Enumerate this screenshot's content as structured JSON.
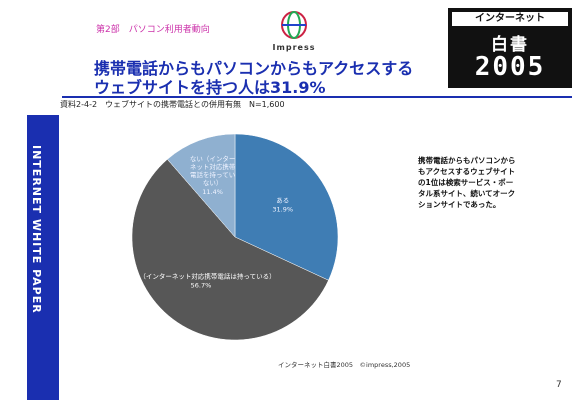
{
  "section_label": "第2部　パソコン利用者動向",
  "logo_text": "Impress",
  "title_line1": "携帯電話からもパソコンからもアクセスする",
  "title_line2": "ウェブサイトを持つ人は31.9%",
  "chart_caption": "資料2-4-2　ウェブサイトの携帯電話との併用有無　N=1,600",
  "sidebar_text": "INTERNET WHITE PAPER",
  "badge": {
    "top": "インターネット",
    "middle": "白書",
    "year": "2005"
  },
  "annotation": "携帯電話からもパソコンからもアクセスするウェブサイトの1位は検索サービス・ポータル系サイト、続いてオークションサイトであった。",
  "source": "インターネット白書2005　©impress,2005",
  "page_number": "7",
  "colors": {
    "aru": "#3f7db4",
    "nai_taiou_nashi": "#8fb0d0",
    "nai_motteiru": "#575757",
    "accent": "#1a2fb0"
  },
  "chart_data": {
    "type": "pie",
    "title": "資料2-4-2　ウェブサイトの携帯電話との併用有無　N=1,600",
    "slices": [
      {
        "label": "ある",
        "value": 31.9,
        "value_label": "31.9%"
      },
      {
        "label": "ない（インターネット対応携帯電話は持っている）",
        "value": 56.7,
        "value_label": "56.7%"
      },
      {
        "label": "ない（インターネット対応携帯電話を持っていない）",
        "value": 11.4,
        "value_label": "11.4%"
      }
    ]
  }
}
